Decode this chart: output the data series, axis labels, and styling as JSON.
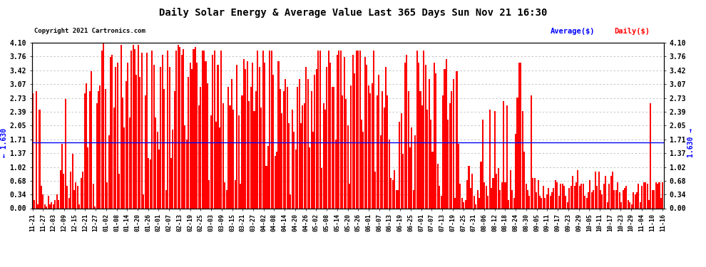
{
  "title": "Daily Solar Energy & Average Value Last 365 Days Sun Nov 21 16:30",
  "copyright": "Copyright 2021 Cartronics.com",
  "avg_label": "Average($)",
  "daily_label": "Daily($)",
  "avg_value": 1.63,
  "avg_color": "blue",
  "bar_color": "red",
  "ylim": [
    0.0,
    4.1
  ],
  "yticks": [
    0.0,
    0.34,
    0.68,
    1.02,
    1.37,
    1.71,
    2.05,
    2.39,
    2.73,
    3.07,
    3.42,
    3.76,
    4.1
  ],
  "background_color": "white",
  "grid_color": "#bbbbbb",
  "x_labels": [
    "11-21",
    "11-27",
    "12-03",
    "12-09",
    "12-15",
    "12-21",
    "12-27",
    "01-02",
    "01-08",
    "01-14",
    "01-20",
    "01-26",
    "02-01",
    "02-07",
    "02-13",
    "02-19",
    "02-25",
    "03-03",
    "03-09",
    "03-15",
    "03-21",
    "03-27",
    "04-02",
    "04-08",
    "04-14",
    "04-20",
    "04-26",
    "05-02",
    "05-08",
    "05-14",
    "05-20",
    "05-26",
    "06-01",
    "06-07",
    "06-13",
    "06-19",
    "06-25",
    "07-01",
    "07-07",
    "07-13",
    "07-19",
    "07-25",
    "07-31",
    "08-06",
    "08-12",
    "08-18",
    "08-24",
    "08-30",
    "09-05",
    "09-11",
    "09-17",
    "09-23",
    "09-29",
    "10-05",
    "10-11",
    "10-17",
    "10-23",
    "10-29",
    "11-04",
    "11-10",
    "11-16"
  ],
  "values": [
    2.85,
    0.2,
    2.9,
    0.1,
    2.45,
    0.55,
    0.35,
    0.1,
    0.05,
    0.3,
    0.1,
    0.15,
    0.1,
    0.2,
    0.35,
    0.2,
    0.95,
    1.6,
    0.85,
    2.7,
    0.55,
    0.25,
    0.9,
    1.35,
    0.45,
    0.65,
    0.55,
    0.1,
    0.75,
    0.9,
    2.85,
    3.1,
    1.5,
    2.9,
    3.4,
    0.6,
    0.05,
    2.6,
    2.9,
    3.05,
    3.9,
    4.1,
    2.95,
    0.65,
    1.8,
    3.75,
    3.8,
    2.5,
    3.5,
    3.6,
    0.85,
    4.05,
    2.75,
    2.0,
    3.15,
    3.6,
    2.25,
    3.9,
    4.05,
    3.95,
    3.3,
    4.05,
    3.25,
    3.85,
    0.35,
    2.8,
    3.85,
    1.25,
    1.2,
    3.9,
    3.55,
    2.25,
    1.9,
    1.45,
    3.5,
    3.8,
    2.95,
    0.45,
    3.9,
    3.5,
    1.25,
    1.95,
    2.9,
    3.9,
    4.05,
    4.0,
    3.8,
    3.95,
    2.05,
    1.7,
    3.25,
    3.6,
    3.45,
    3.95,
    4.0,
    3.6,
    2.55,
    3.0,
    3.9,
    3.9,
    3.65,
    3.1,
    0.7,
    2.3,
    3.8,
    3.9,
    2.15,
    3.55,
    2.0,
    3.9,
    2.6,
    0.65,
    0.45,
    3.0,
    2.55,
    3.2,
    2.45,
    0.7,
    3.55,
    2.3,
    0.6,
    2.8,
    3.7,
    3.45,
    3.65,
    2.65,
    3.0,
    3.6,
    2.4,
    2.9,
    3.9,
    3.5,
    2.5,
    3.9,
    3.6,
    1.05,
    1.55,
    3.9,
    3.9,
    3.3,
    1.3,
    1.4,
    3.65,
    2.95,
    2.35,
    2.9,
    3.2,
    3.0,
    2.1,
    0.35,
    2.45,
    1.9,
    1.45,
    3.0,
    3.2,
    2.1,
    2.55,
    2.6,
    3.5,
    3.2,
    1.5,
    2.9,
    1.9,
    3.3,
    3.45,
    3.9,
    3.9,
    1.0,
    2.6,
    2.45,
    3.5,
    3.9,
    3.6,
    3.0,
    3.0,
    1.7,
    3.8,
    3.9,
    3.9,
    2.8,
    3.75,
    2.7,
    2.05,
    0.6,
    3.05,
    3.8,
    3.35,
    3.9,
    3.9,
    3.9,
    2.2,
    1.9,
    3.75,
    3.55,
    3.05,
    2.85,
    3.1,
    3.9,
    0.9,
    2.8,
    3.3,
    1.8,
    2.9,
    2.5,
    3.5,
    2.8,
    1.7,
    0.75,
    0.7,
    0.95,
    0.45,
    0.45,
    2.15,
    2.35,
    1.35,
    3.6,
    3.8,
    2.9,
    1.5,
    2.0,
    0.45,
    1.8,
    3.9,
    3.6,
    2.9,
    2.55,
    3.9,
    3.55,
    2.45,
    3.2,
    2.2,
    1.4,
    3.6,
    3.35,
    1.1,
    0.55,
    0.3,
    2.8,
    3.45,
    3.7,
    2.2,
    2.6,
    2.9,
    3.2,
    0.25,
    3.4,
    1.6,
    0.6,
    0.25,
    0.15,
    0.2,
    0.7,
    1.05,
    0.5,
    0.85,
    0.3,
    0.1,
    0.45,
    0.25,
    1.15,
    2.2,
    0.65,
    0.55,
    0.3,
    2.45,
    0.5,
    0.75,
    2.4,
    0.85,
    1.0,
    0.45,
    0.65,
    2.65,
    0.65,
    2.55,
    0.2,
    0.95,
    0.45,
    0.25,
    1.85,
    2.75,
    3.6,
    3.6,
    2.4,
    1.4,
    0.6,
    0.45,
    0.3,
    2.8,
    0.75,
    0.75,
    0.4,
    0.7,
    0.3,
    0.25,
    0.55,
    0.25,
    0.35,
    0.5,
    0.3,
    0.4,
    0.5,
    0.7,
    0.65,
    0.3,
    0.6,
    0.6,
    0.55,
    0.3,
    0.15,
    0.5,
    0.55,
    0.8,
    0.55,
    0.65,
    0.95,
    0.55,
    0.6,
    0.6,
    0.3,
    0.25,
    0.4,
    0.7,
    0.4,
    0.45,
    0.9,
    0.55,
    0.9,
    0.45,
    0.35,
    0.6,
    0.8,
    0.15,
    0.6,
    0.8,
    0.9,
    0.45,
    0.45,
    0.65,
    0.4,
    0.15,
    0.45,
    0.5,
    0.55,
    0.2,
    0.15,
    0.1,
    0.4,
    0.35,
    0.4,
    0.6,
    0.15,
    0.55,
    0.65,
    0.65,
    0.6,
    0.2,
    2.6,
    0.45,
    0.45,
    0.65,
    0.6,
    0.65,
    0.25,
    0.65
  ]
}
